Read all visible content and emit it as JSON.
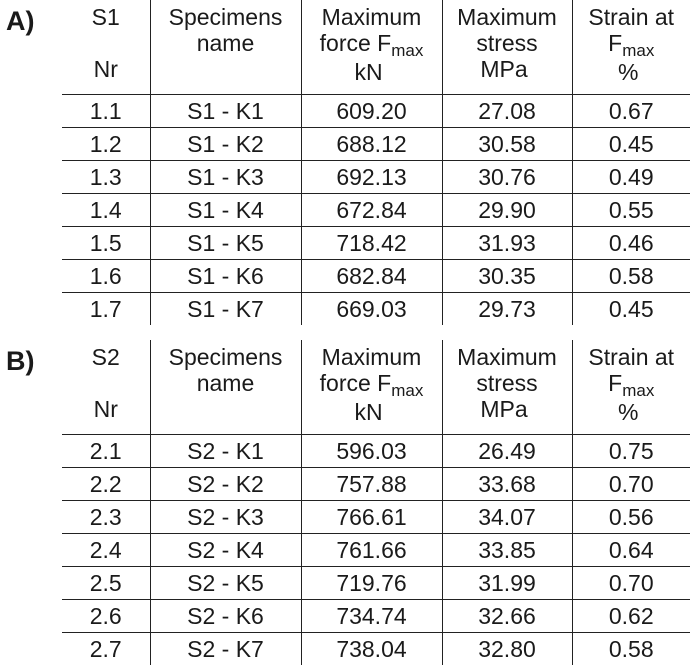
{
  "tables": [
    {
      "label": "A)",
      "header": {
        "nr_line1": "S1",
        "nr_line2": "Nr",
        "name_line1": "Specimens",
        "name_line2": "name",
        "force_line1": "Maximum",
        "force_line2": "force  F",
        "force_sub": "max",
        "force_unit": "kN",
        "stress_line1": "Maximum",
        "stress_line2": "stress",
        "stress_unit": "MPa",
        "strain_line1": "Strain at",
        "strain_line2": "F",
        "strain_sub": "max",
        "strain_unit": "%"
      },
      "rows": [
        {
          "nr": "1.1",
          "name": "S1 - K1",
          "force": "609.20",
          "stress": "27.08",
          "strain": "0.67"
        },
        {
          "nr": "1.2",
          "name": "S1 - K2",
          "force": "688.12",
          "stress": "30.58",
          "strain": "0.45"
        },
        {
          "nr": "1.3",
          "name": "S1 - K3",
          "force": "692.13",
          "stress": "30.76",
          "strain": "0.49"
        },
        {
          "nr": "1.4",
          "name": "S1 - K4",
          "force": "672.84",
          "stress": "29.90",
          "strain": "0.55"
        },
        {
          "nr": "1.5",
          "name": "S1 - K5",
          "force": "718.42",
          "stress": "31.93",
          "strain": "0.46"
        },
        {
          "nr": "1.6",
          "name": "S1 - K6",
          "force": "682.84",
          "stress": "30.35",
          "strain": "0.58"
        },
        {
          "nr": "1.7",
          "name": "S1 - K7",
          "force": "669.03",
          "stress": "29.73",
          "strain": "0.45"
        }
      ]
    },
    {
      "label": "B)",
      "header": {
        "nr_line1": "S2",
        "nr_line2": "Nr",
        "name_line1": "Specimens",
        "name_line2": "name",
        "force_line1": "Maximum",
        "force_line2": "force  F",
        "force_sub": "max",
        "force_unit": "kN",
        "stress_line1": "Maximum",
        "stress_line2": "stress",
        "stress_unit": "MPa",
        "strain_line1": "Strain at",
        "strain_line2": "F",
        "strain_sub": "max",
        "strain_unit": "%"
      },
      "rows": [
        {
          "nr": "2.1",
          "name": "S2 - K1",
          "force": "596.03",
          "stress": "26.49",
          "strain": "0.75"
        },
        {
          "nr": "2.2",
          "name": "S2 - K2",
          "force": "757.88",
          "stress": "33.68",
          "strain": "0.70"
        },
        {
          "nr": "2.3",
          "name": "S2 - K3",
          "force": "766.61",
          "stress": "34.07",
          "strain": "0.56"
        },
        {
          "nr": "2.4",
          "name": "S2 - K4",
          "force": "761.66",
          "stress": "33.85",
          "strain": "0.64"
        },
        {
          "nr": "2.5",
          "name": "S2 - K5",
          "force": "719.76",
          "stress": "31.99",
          "strain": "0.70"
        },
        {
          "nr": "2.6",
          "name": "S2 - K6",
          "force": "734.74",
          "stress": "32.66",
          "strain": "0.62"
        },
        {
          "nr": "2.7",
          "name": "S2 - K7",
          "force": "738.04",
          "stress": "32.80",
          "strain": "0.58"
        }
      ]
    }
  ]
}
